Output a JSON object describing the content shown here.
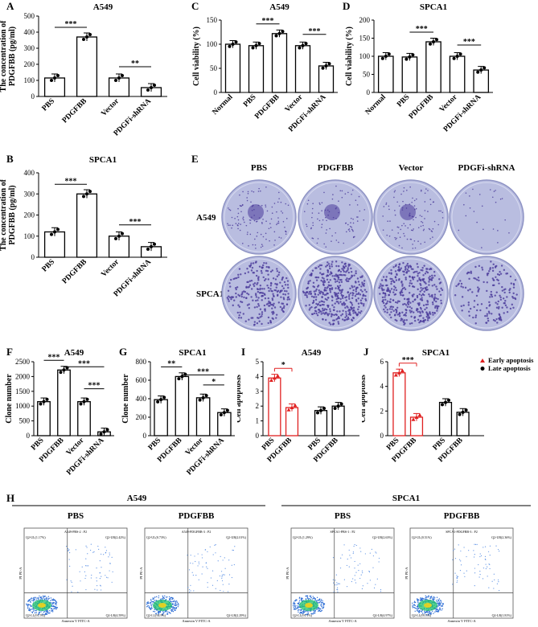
{
  "panels": {
    "A": {
      "letter": "A",
      "title": "A549"
    },
    "B": {
      "letter": "B",
      "title": "SPCA1"
    },
    "C": {
      "letter": "C",
      "title": "A549"
    },
    "D": {
      "letter": "D",
      "title": "SPCA1"
    },
    "E": {
      "letter": "E"
    },
    "F": {
      "letter": "F",
      "title": "A549"
    },
    "G": {
      "letter": "G",
      "title": "SPCA1"
    },
    "H": {
      "letter": "H"
    },
    "I": {
      "letter": "I",
      "title": "A549"
    },
    "J": {
      "letter": "J",
      "title": "SPCA1"
    }
  },
  "chart_data": [
    {
      "id": "A",
      "type": "bar",
      "title": "A549",
      "ylabel": "The concentration of PDGFBB (pg/ml)",
      "categories": [
        "PBS",
        "PDGFBB",
        "Vector",
        "PDGFi-shRNA"
      ],
      "values": [
        115,
        370,
        115,
        55
      ],
      "ylim": [
        0,
        500
      ],
      "yticks": [
        0,
        100,
        200,
        300,
        400,
        500
      ],
      "significance": [
        {
          "from": 0,
          "to": 1,
          "label": "***"
        },
        {
          "from": 2,
          "to": 3,
          "label": "**"
        }
      ]
    },
    {
      "id": "B",
      "type": "bar",
      "title": "SPCA1",
      "ylabel": "The concentration of PDGFBB (pg/ml)",
      "categories": [
        "PBS",
        "PDGFBB",
        "Vector",
        "PDGFi-shRNA"
      ],
      "values": [
        120,
        300,
        100,
        50
      ],
      "ylim": [
        0,
        400
      ],
      "yticks": [
        0,
        100,
        200,
        300,
        400
      ],
      "significance": [
        {
          "from": 0,
          "to": 1,
          "label": "***"
        },
        {
          "from": 2,
          "to": 3,
          "label": "***"
        }
      ]
    },
    {
      "id": "C",
      "type": "bar",
      "title": "A549",
      "ylabel": "Cell viability (%)",
      "categories": [
        "Normal",
        "PBS",
        "PDGFBB",
        "Vector",
        "PDGFi-shRNA"
      ],
      "values": [
        100,
        97,
        122,
        97,
        55
      ],
      "ylim": [
        0,
        150
      ],
      "yticks": [
        0,
        50,
        100,
        150
      ],
      "significance": [
        {
          "from": 1,
          "to": 2,
          "label": "***"
        },
        {
          "from": 3,
          "to": 4,
          "label": "***"
        }
      ]
    },
    {
      "id": "D",
      "type": "bar",
      "title": "SPCA1",
      "ylabel": "Cell viability (%)",
      "categories": [
        "Normal",
        "PBS",
        "PDGFBB",
        "Vector",
        "PDGFi-shRNA"
      ],
      "values": [
        100,
        98,
        140,
        100,
        62
      ],
      "ylim": [
        0,
        200
      ],
      "yticks": [
        0,
        50,
        100,
        150,
        200
      ],
      "significance": [
        {
          "from": 1,
          "to": 2,
          "label": "***"
        },
        {
          "from": 3,
          "to": 4,
          "label": "***"
        }
      ]
    },
    {
      "id": "F",
      "type": "bar",
      "title": "A549",
      "ylabel": "Clone number",
      "categories": [
        "PBS",
        "PDGFBB",
        "Vector",
        "PDGFi-shRNA"
      ],
      "values": [
        1150,
        2220,
        1150,
        130
      ],
      "ylim": [
        0,
        2500
      ],
      "yticks": [
        0,
        500,
        1000,
        1500,
        2000,
        2500
      ],
      "significance": [
        {
          "from": 0,
          "to": 1,
          "label": "***"
        },
        {
          "from": 1,
          "to": 3,
          "label": "***"
        },
        {
          "from": 2,
          "to": 3,
          "label": "***"
        }
      ]
    },
    {
      "id": "G",
      "type": "bar",
      "title": "SPCA1",
      "ylabel": "Clone number",
      "categories": [
        "PBS",
        "PDGFBB",
        "Vector",
        "PDGFi-shRNA"
      ],
      "values": [
        390,
        640,
        410,
        250
      ],
      "ylim": [
        0,
        800
      ],
      "yticks": [
        0,
        200,
        400,
        600,
        800
      ],
      "significance": [
        {
          "from": 0,
          "to": 1,
          "label": "**"
        },
        {
          "from": 1,
          "to": 3,
          "label": "***"
        },
        {
          "from": 2,
          "to": 3,
          "label": "*"
        }
      ]
    },
    {
      "id": "I",
      "type": "bar",
      "title": "A549",
      "ylabel": "Cell apoptosis",
      "categories": [
        "PBS",
        "PDGFBB",
        "PBS",
        "PDGFBB"
      ],
      "values": [
        3.9,
        1.9,
        1.7,
        2.0
      ],
      "bar_colors": [
        "#e02020",
        "#e02020",
        "#000000",
        "#000000"
      ],
      "ylim": [
        0,
        5
      ],
      "yticks": [
        0,
        1,
        2,
        3,
        4,
        5
      ],
      "significance": [
        {
          "from": 0,
          "to": 1,
          "label": "*"
        }
      ]
    },
    {
      "id": "J",
      "type": "bar",
      "title": "SPCA1",
      "ylabel": "Cell apoptosis",
      "categories": [
        "PBS",
        "PDGFBB",
        "PBS",
        "PDGFBB"
      ],
      "values": [
        5.1,
        1.5,
        2.7,
        1.9
      ],
      "bar_colors": [
        "#e02020",
        "#e02020",
        "#000000",
        "#000000"
      ],
      "ylim": [
        0,
        6
      ],
      "yticks": [
        0,
        2,
        4,
        6
      ],
      "significance": [
        {
          "from": 0,
          "to": 1,
          "label": "***"
        }
      ],
      "legend": [
        {
          "label": "Early apoptosis",
          "color": "#e02020",
          "marker": "triangle"
        },
        {
          "label": "Late apoptosis",
          "color": "#000000",
          "marker": "circle"
        }
      ]
    }
  ],
  "colony": {
    "columns": [
      "PBS",
      "PDGFBB",
      "Vector",
      "PDGFi-shRNA"
    ],
    "rows": [
      "A549",
      "SPCA1"
    ],
    "dish_color": "#b9bde0",
    "colony_color": "#4a3a9a"
  },
  "flow": {
    "groups": [
      {
        "title": "A549",
        "plots": [
          {
            "label": "PBS",
            "header": "A549-PBS-2 : P2",
            "q1": "Q2-UL(1.17%)",
            "q2": "Q2-UR(2.42%)",
            "q3": "Q2-LL(91.5%)",
            "q4": "Q2-LR(4.59%)"
          },
          {
            "label": "PDGFBB",
            "header": "A549-PDGFBB-3 : P2",
            "q1": "Q2-UL(0.73%)",
            "q2": "Q2-UR(2.01%)",
            "q3": "Q2-LL(94.9%)",
            "q4": "Q2-LR(2.29%)"
          }
        ]
      },
      {
        "title": "SPCA1",
        "plots": [
          {
            "label": "PBS",
            "header": "SPCA1-PBS-1 : P2",
            "q1": "Q2-UL(1.29%)",
            "q2": "Q2-UR(2.63%)",
            "q3": "Q2-LL(91.1%)",
            "q4": "Q2-LR(4.97%)"
          },
          {
            "label": "PDGFBB",
            "header": "SPCA1-PDGFBB-3 : P2",
            "q1": "Q2-UL(0.51%)",
            "q2": "Q2-UR(2.36%)",
            "q3": "Q2-LL(95.3%)",
            "q4": "Q2-LR(1.81%)"
          }
        ]
      }
    ],
    "xlabel": "Annexin V FITC-A",
    "ylabel": "PI PE-A"
  }
}
